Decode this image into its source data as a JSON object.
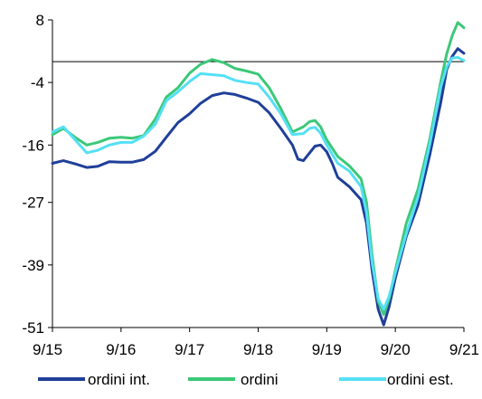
{
  "chart_data": {
    "type": "line",
    "title": "",
    "xlabel": "",
    "ylabel": "",
    "ylim": [
      -51,
      8
    ],
    "y_ticks": [
      "8",
      "-4",
      "-16",
      "-27",
      "-39",
      "-51"
    ],
    "y_tick_values": [
      8,
      -4,
      -16,
      -27,
      -39,
      -51
    ],
    "x_ticks": [
      "9/15",
      "9/16",
      "9/17",
      "9/18",
      "9/19",
      "9/20",
      "9/21"
    ],
    "x_tick_values": [
      2015.67,
      2016.67,
      2017.67,
      2018.67,
      2019.67,
      2020.67,
      2021.67
    ],
    "xlim": [
      2015.67,
      2021.67
    ],
    "zero_line": 0,
    "grid": false,
    "legend_position": "bottom",
    "series": [
      {
        "name": "ordini int.",
        "color": "#1f3f99",
        "points": [
          [
            2015.67,
            -19.5
          ],
          [
            2015.83,
            -19.0
          ],
          [
            2016.0,
            -19.6
          ],
          [
            2016.17,
            -20.3
          ],
          [
            2016.33,
            -20.1
          ],
          [
            2016.5,
            -19.2
          ],
          [
            2016.67,
            -19.3
          ],
          [
            2016.83,
            -19.3
          ],
          [
            2017.0,
            -18.8
          ],
          [
            2017.17,
            -17.2
          ],
          [
            2017.33,
            -14.5
          ],
          [
            2017.5,
            -11.7
          ],
          [
            2017.67,
            -10.0
          ],
          [
            2017.83,
            -8.0
          ],
          [
            2018.0,
            -6.5
          ],
          [
            2018.17,
            -6.0
          ],
          [
            2018.33,
            -6.3
          ],
          [
            2018.5,
            -7.0
          ],
          [
            2018.67,
            -7.8
          ],
          [
            2018.83,
            -9.8
          ],
          [
            2019.0,
            -12.8
          ],
          [
            2019.17,
            -16.0
          ],
          [
            2019.25,
            -18.7
          ],
          [
            2019.33,
            -19.0
          ],
          [
            2019.42,
            -17.5
          ],
          [
            2019.5,
            -16.2
          ],
          [
            2019.58,
            -16.0
          ],
          [
            2019.67,
            -17.3
          ],
          [
            2019.75,
            -19.5
          ],
          [
            2019.83,
            -22.2
          ],
          [
            2020.0,
            -24.0
          ],
          [
            2020.17,
            -26.5
          ],
          [
            2020.25,
            -31.0
          ],
          [
            2020.33,
            -40.0
          ],
          [
            2020.42,
            -47.5
          ],
          [
            2020.5,
            -50.5
          ],
          [
            2020.58,
            -47.0
          ],
          [
            2020.67,
            -41.5
          ],
          [
            2020.83,
            -33.5
          ],
          [
            2021.0,
            -27.5
          ],
          [
            2021.17,
            -18.0
          ],
          [
            2021.33,
            -8.0
          ],
          [
            2021.42,
            -1.5
          ],
          [
            2021.5,
            1.0
          ],
          [
            2021.58,
            2.5
          ],
          [
            2021.67,
            1.6
          ]
        ]
      },
      {
        "name": "ordini",
        "color": "#3cc878",
        "points": [
          [
            2015.67,
            -14.0
          ],
          [
            2015.83,
            -12.8
          ],
          [
            2016.0,
            -14.5
          ],
          [
            2016.17,
            -16.0
          ],
          [
            2016.33,
            -15.5
          ],
          [
            2016.5,
            -14.7
          ],
          [
            2016.67,
            -14.5
          ],
          [
            2016.83,
            -14.7
          ],
          [
            2017.0,
            -14.2
          ],
          [
            2017.17,
            -11.0
          ],
          [
            2017.33,
            -6.8
          ],
          [
            2017.5,
            -5.0
          ],
          [
            2017.67,
            -2.2
          ],
          [
            2017.83,
            -0.5
          ],
          [
            2018.0,
            0.4
          ],
          [
            2018.17,
            -0.2
          ],
          [
            2018.33,
            -1.3
          ],
          [
            2018.5,
            -1.8
          ],
          [
            2018.67,
            -2.4
          ],
          [
            2018.83,
            -5.0
          ],
          [
            2019.0,
            -9.0
          ],
          [
            2019.17,
            -13.5
          ],
          [
            2019.33,
            -12.5
          ],
          [
            2019.42,
            -11.5
          ],
          [
            2019.5,
            -11.3
          ],
          [
            2019.58,
            -12.5
          ],
          [
            2019.67,
            -15.0
          ],
          [
            2019.83,
            -18.2
          ],
          [
            2020.0,
            -20.0
          ],
          [
            2020.17,
            -22.5
          ],
          [
            2020.25,
            -27.0
          ],
          [
            2020.33,
            -37.0
          ],
          [
            2020.42,
            -46.0
          ],
          [
            2020.5,
            -48.5
          ],
          [
            2020.58,
            -45.5
          ],
          [
            2020.67,
            -40.0
          ],
          [
            2020.83,
            -31.0
          ],
          [
            2021.0,
            -24.5
          ],
          [
            2021.17,
            -15.0
          ],
          [
            2021.33,
            -4.0
          ],
          [
            2021.42,
            1.5
          ],
          [
            2021.5,
            5.0
          ],
          [
            2021.58,
            7.5
          ],
          [
            2021.67,
            6.5
          ]
        ]
      },
      {
        "name": "ordini est.",
        "color": "#55e0f5",
        "points": [
          [
            2015.67,
            -13.5
          ],
          [
            2015.83,
            -12.5
          ],
          [
            2016.0,
            -15.0
          ],
          [
            2016.17,
            -17.5
          ],
          [
            2016.33,
            -17.0
          ],
          [
            2016.5,
            -16.0
          ],
          [
            2016.67,
            -15.5
          ],
          [
            2016.83,
            -15.5
          ],
          [
            2017.0,
            -14.3
          ],
          [
            2017.17,
            -12.0
          ],
          [
            2017.33,
            -7.5
          ],
          [
            2017.5,
            -5.8
          ],
          [
            2017.67,
            -3.8
          ],
          [
            2017.83,
            -2.3
          ],
          [
            2018.0,
            -2.5
          ],
          [
            2018.17,
            -2.7
          ],
          [
            2018.33,
            -3.6
          ],
          [
            2018.5,
            -4.0
          ],
          [
            2018.67,
            -4.3
          ],
          [
            2018.83,
            -6.8
          ],
          [
            2019.0,
            -10.0
          ],
          [
            2019.17,
            -14.0
          ],
          [
            2019.33,
            -13.8
          ],
          [
            2019.42,
            -12.8
          ],
          [
            2019.5,
            -12.6
          ],
          [
            2019.58,
            -13.7
          ],
          [
            2019.67,
            -16.0
          ],
          [
            2019.83,
            -19.5
          ],
          [
            2020.0,
            -21.0
          ],
          [
            2020.17,
            -24.0
          ],
          [
            2020.25,
            -29.0
          ],
          [
            2020.33,
            -38.5
          ],
          [
            2020.42,
            -45.5
          ],
          [
            2020.5,
            -47.5
          ],
          [
            2020.58,
            -45.0
          ],
          [
            2020.67,
            -40.5
          ],
          [
            2020.83,
            -33.0
          ],
          [
            2021.0,
            -26.0
          ],
          [
            2021.17,
            -16.0
          ],
          [
            2021.33,
            -5.0
          ],
          [
            2021.42,
            -1.0
          ],
          [
            2021.5,
            0.7
          ],
          [
            2021.58,
            0.8
          ],
          [
            2021.67,
            0.2
          ]
        ]
      }
    ]
  }
}
